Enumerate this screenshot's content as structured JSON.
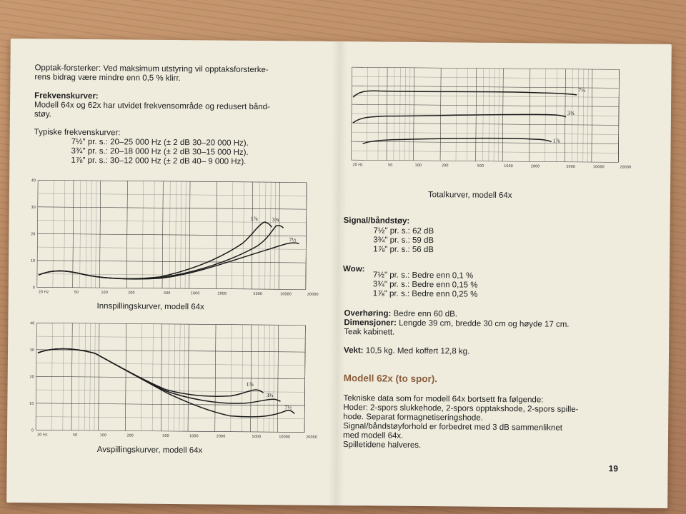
{
  "left": {
    "intro_line1": "Opptak-forsterker: Ved maksimum utstyring vil opptaksforsterke-",
    "intro_line2": "rens bidrag være mindre enn 0,5 % klirr.",
    "freq_heading": "Frekvenskurver:",
    "freq_line1": "Modell 64x og 62x har utvidet frekvensområde og redusert bånd-",
    "freq_line2": "støy.",
    "typical_heading": "Typiske frekvenskurver:",
    "typical": [
      "7½\" pr. s.: 20–25 000 Hz (± 2 dB 30–20 000 Hz).",
      "3¾\" pr. s.: 20–18 000 Hz (± 2 dB 30–15 000 Hz).",
      "1⅞\" pr. s.: 30–12 000 Hz (± 2 dB 40– 9 000 Hz)."
    ]
  },
  "charts": {
    "x_ticks": [
      "20 Hz",
      "50",
      "100",
      "200",
      "500",
      "1000",
      "2000",
      "5000",
      "10000",
      "20000"
    ],
    "recording": {
      "caption": "Innspillingskurver, modell 64x",
      "y_ticks": [
        "40",
        "30",
        "20",
        "10",
        "0"
      ],
      "curve_labels": [
        "1⅞",
        "3¾",
        "7½"
      ]
    },
    "playback": {
      "caption": "Avspillingskurver, modell 64x",
      "y_ticks": [
        "40",
        "30",
        "20",
        "10",
        "0"
      ],
      "curve_labels": [
        "1⅞",
        "3¾",
        "7½"
      ]
    },
    "total": {
      "caption": "Totalkurver, modell 64x",
      "x_ticks": [
        "20 Hz",
        "50",
        "100",
        "200",
        "500",
        "1000",
        "2000",
        "5000",
        "10000",
        "20000"
      ],
      "curve_labels": [
        "7½",
        "3¾",
        "1⅞"
      ]
    }
  },
  "right": {
    "snr_heading": "Signal/båndstøy:",
    "snr": [
      "7½\" pr. s.: 62 dB",
      "3¾\" pr. s.: 59 dB",
      "1⅞\" pr. s.: 56 dB"
    ],
    "wow_heading": "Wow:",
    "wow": [
      "7½\" pr. s.: Bedre enn 0,1 %",
      "3¾\" pr. s.: Bedre enn 0,15 %",
      "1⅞\" pr. s.: Bedre enn 0,25 %"
    ],
    "crosstalk_label": "Overhøring:",
    "crosstalk_value": " Bedre enn 60 dB.",
    "dims_label": "Dimensjoner:",
    "dims_value": " Lengde 39 cm, bredde 30 cm og høyde 17 cm.",
    "cabinet": "Teak kabinett.",
    "weight_label": "Vekt:",
    "weight_value": " 10,5 kg. Med koffert 12,8 kg.",
    "model_heading": "Modell 62x (to spor).",
    "lines": [
      "Tekniske data som for modell 64x bortsett fra følgende:",
      "Hoder: 2-spors slukkehode, 2-spors opptakshode, 2-spors spille-",
      "hode. Separat formagnetiseringshode.",
      "Signal/båndstøyforhold er forbedret med 3 dB sammenliknet",
      "med modell 64x.",
      "Spilletidene halveres."
    ],
    "page_number": "19"
  }
}
